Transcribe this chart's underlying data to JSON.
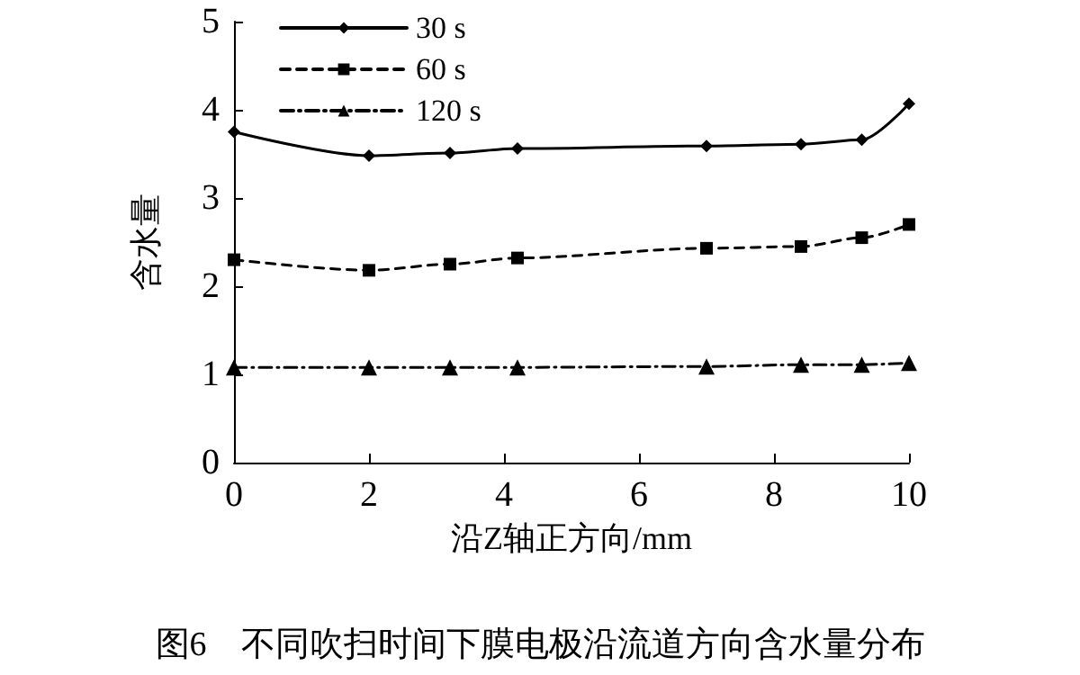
{
  "chart_data": {
    "type": "line",
    "title": "图6　不同吹扫时间下膜电极沿流道方向含水量分布",
    "xlabel": "沿Z轴正方向/mm",
    "ylabel": "含水量",
    "x": [
      0,
      2,
      3.2,
      4.2,
      7,
      8.4,
      9.3,
      10
    ],
    "series": [
      {
        "name": "30 s",
        "color": "#000000",
        "marker": "diamond",
        "line_style": "solid",
        "values": [
          3.75,
          3.48,
          3.51,
          3.56,
          3.59,
          3.61,
          3.66,
          4.07
        ]
      },
      {
        "name": "60 s",
        "color": "#000000",
        "marker": "square",
        "line_style": "dashed",
        "values": [
          2.3,
          2.18,
          2.25,
          2.32,
          2.43,
          2.45,
          2.55,
          2.7
        ]
      },
      {
        "name": "120 s",
        "color": "#000000",
        "marker": "triangle",
        "line_style": "dashdot",
        "values": [
          1.08,
          1.08,
          1.08,
          1.08,
          1.09,
          1.11,
          1.11,
          1.13
        ]
      }
    ],
    "xlim": [
      0,
      10
    ],
    "xticks": [
      0,
      2,
      4,
      6,
      8,
      10
    ],
    "ylim": [
      0,
      5
    ],
    "yticks": [
      0,
      1,
      2,
      3,
      4,
      5
    ],
    "grid": false,
    "legend": "top left"
  }
}
